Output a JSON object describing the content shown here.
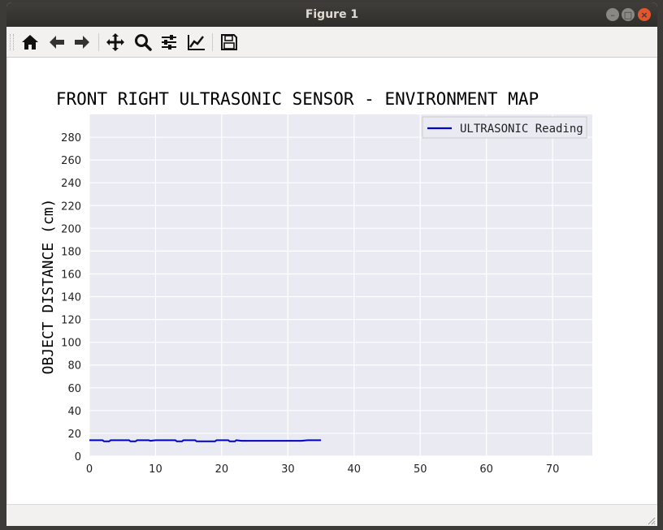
{
  "window": {
    "title": "Figure 1"
  },
  "toolbar": {
    "buttons": [
      {
        "name": "home-icon"
      },
      {
        "name": "back-arrow-icon"
      },
      {
        "name": "forward-arrow-icon"
      },
      {
        "name": "pan-move-icon"
      },
      {
        "name": "zoom-magnifier-icon"
      },
      {
        "name": "configure-subplots-icon"
      },
      {
        "name": "edit-axis-curve-icon"
      },
      {
        "name": "save-floppy-icon"
      }
    ]
  },
  "colors": {
    "plot_background": "#eaeaf2",
    "grid": "#ffffff",
    "series_line": "#0000cc"
  },
  "chart_data": {
    "type": "line",
    "title": "FRONT RIGHT ULTRASONIC SENSOR - ENVIRONMENT MAP",
    "xlabel": "",
    "ylabel": "OBJECT DISTANCE (cm)",
    "xlim": [
      0,
      76
    ],
    "ylim": [
      0,
      300
    ],
    "xticks": [
      0,
      10,
      20,
      30,
      40,
      50,
      60,
      70
    ],
    "yticks": [
      0,
      20,
      40,
      60,
      80,
      100,
      120,
      140,
      160,
      180,
      200,
      220,
      240,
      260,
      280
    ],
    "grid": true,
    "legend_position": "top-right",
    "series": [
      {
        "name": "ULTRASONIC Reading",
        "color": "#0000cc",
        "x": [
          0,
          1,
          2,
          2.2,
          3,
          3.2,
          4,
          5,
          6,
          6.2,
          7,
          7.2,
          8,
          9,
          9.2,
          10,
          11,
          12,
          13,
          13.2,
          14,
          14.2,
          15,
          16,
          16.2,
          17,
          18,
          19,
          19.2,
          20,
          21,
          21.2,
          22,
          22.2,
          23,
          24,
          25,
          26,
          27,
          28,
          29,
          30,
          31,
          32,
          33,
          34,
          35
        ],
        "y": [
          14,
          14,
          14,
          13,
          13,
          14,
          14,
          14,
          14,
          13,
          13,
          14,
          14,
          14,
          13.5,
          14,
          14,
          14,
          14,
          13,
          13,
          14,
          14,
          14,
          13,
          13,
          13,
          13,
          14,
          14,
          14,
          13,
          13,
          14,
          13.5,
          13.5,
          13.5,
          13.5,
          13.5,
          13.5,
          13.5,
          13.5,
          13.5,
          13.5,
          14,
          14,
          14
        ]
      }
    ]
  }
}
